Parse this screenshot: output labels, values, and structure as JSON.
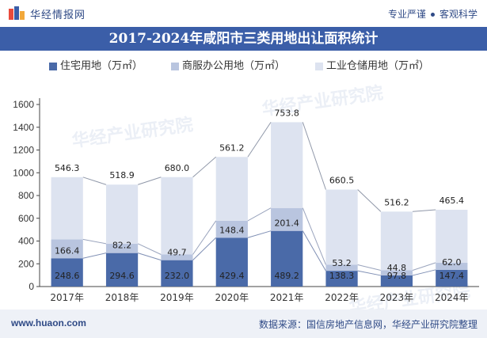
{
  "header": {
    "brand": "华经情报网",
    "tagline_left": "专业严谨",
    "tagline_right": "客观科学",
    "brand_color": "#2f4a86",
    "title_bar_color": "#3b5ea8"
  },
  "footer": {
    "website": "www.huaon.com",
    "source": "数据来源：国信房地产信息网，华经产业研究院整理"
  },
  "watermark": "华经产业研究院",
  "chart_data": {
    "type": "bar",
    "stacked": true,
    "title": "2017-2024年咸阳市三类用地出让面积统计",
    "categories": [
      "2017年",
      "2018年",
      "2019年",
      "2020年",
      "2021年",
      "2022年",
      "2023年",
      "2024年"
    ],
    "series": [
      {
        "name": "住宅用地（万㎡）",
        "color": "#4a6aa8",
        "values": [
          248.6,
          294.6,
          232.0,
          429.4,
          489.2,
          138.3,
          97.8,
          147.4
        ]
      },
      {
        "name": "商服办公用地（万㎡）",
        "color": "#b9c5df",
        "values": [
          166.4,
          82.2,
          49.7,
          148.4,
          201.4,
          53.2,
          44.8,
          62.0
        ]
      },
      {
        "name": "工业仓储用地（万㎡）",
        "color": "#dde3f0",
        "values": [
          546.3,
          518.9,
          680.0,
          561.2,
          753.8,
          660.5,
          516.2,
          465.4
        ]
      }
    ],
    "ylim": [
      0,
      1600
    ],
    "yticks": [
      0,
      200,
      400,
      600,
      800,
      1000,
      1200,
      1400,
      1600
    ],
    "legend_position": "top",
    "grid": false
  }
}
